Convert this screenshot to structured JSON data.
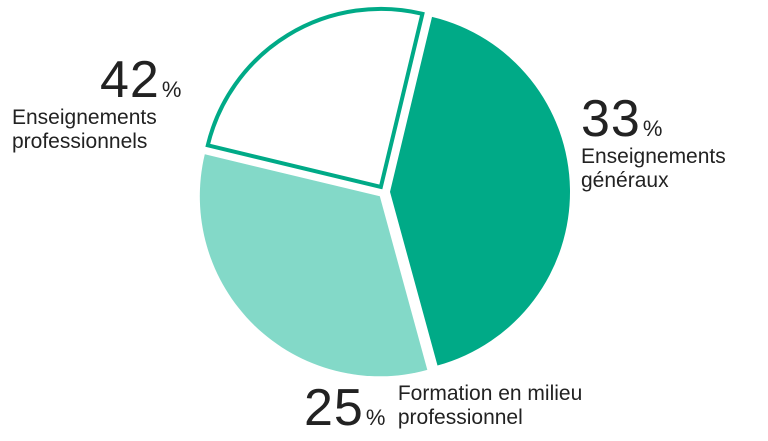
{
  "chart_data": {
    "type": "pie",
    "slices": [
      {
        "pct_value": "42",
        "pct_symbol": "%",
        "name_lines": [
          "Enseignements",
          "professionnels"
        ],
        "value": 42,
        "color": "#00AA87",
        "style": "filled"
      },
      {
        "pct_value": "33",
        "pct_symbol": "%",
        "name_lines": [
          "Enseignements",
          "généraux"
        ],
        "value": 33,
        "color": "#83D9C8",
        "style": "filled"
      },
      {
        "pct_value": "25",
        "pct_symbol": "%",
        "name_lines": [
          "Formation en milieu",
          "professionnel"
        ],
        "value": 25,
        "color": "#00AA87",
        "style": "outline"
      }
    ]
  }
}
